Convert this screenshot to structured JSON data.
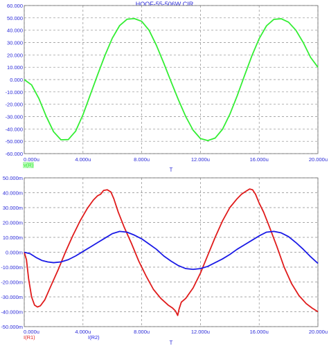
{
  "title": "HQQF-55-506W CIR",
  "colors": {
    "grid": "#8a8a8a",
    "axis": "#000000",
    "tick_label": "#2a2ad8",
    "v_trace": "#33ee33",
    "i_r1": "#e01b1b",
    "i_r2": "#1a1ae6"
  },
  "chart_data": [
    {
      "type": "line",
      "xlabel": "T",
      "ylabel": "",
      "x_ticks": [
        "0.000u",
        "4.000u",
        "8.000u",
        "12.000u",
        "16.000u",
        "20.000u"
      ],
      "y_ticks": [
        "60.000",
        "50.000",
        "40.000",
        "30.000",
        "20.000",
        "10.000",
        "0.000",
        "-10.000",
        "-20.000",
        "-30.000",
        "-40.000",
        "-50.000",
        "-60.000"
      ],
      "xlim": [
        0,
        20
      ],
      "ylim": [
        -60,
        60
      ],
      "x_unit": "u",
      "grid": true,
      "legend": "bottom-left",
      "series": [
        {
          "name": "v(R)",
          "color_key": "v_trace",
          "x": [
            0,
            0.5,
            1,
            1.5,
            2,
            2.5,
            3,
            3.5,
            4,
            4.5,
            5,
            5.5,
            6,
            6.5,
            7,
            7.5,
            8,
            8.5,
            9,
            9.5,
            10,
            10.5,
            11,
            11.5,
            12,
            12.5,
            13,
            13.5,
            14,
            14.5,
            15,
            15.5,
            16,
            16.5,
            17,
            17.5,
            18,
            18.5,
            19,
            19.5,
            20
          ],
          "values": [
            0.0,
            -4.3,
            -15.4,
            -29.9,
            -42.3,
            -48.8,
            -48.6,
            -41.8,
            -28.5,
            -12.2,
            4.0,
            19.7,
            33.6,
            43.8,
            48.9,
            49.4,
            47.2,
            40.0,
            27.8,
            13.4,
            -1.7,
            -16.4,
            -30.0,
            -41.0,
            -47.8,
            -49.4,
            -47.4,
            -40.3,
            -28.2,
            -13.2,
            3.2,
            19.2,
            33.2,
            43.6,
            48.8,
            49.3,
            46.5,
            40.0,
            30.0,
            18.0,
            10.0
          ]
        }
      ]
    },
    {
      "type": "line",
      "xlabel": "T",
      "ylabel": "",
      "x_ticks": [
        "0.000u",
        "4.000u",
        "8.000u",
        "12.000u",
        "16.000u",
        "20.000u"
      ],
      "y_ticks": [
        "50.000m",
        "40.000m",
        "30.000m",
        "20.000m",
        "10.000m",
        "0.000m",
        "-10.000m",
        "-20.000m",
        "-30.000m",
        "-40.000m",
        "-50.000m"
      ],
      "xlim": [
        0,
        20
      ],
      "ylim": [
        -50,
        50
      ],
      "x_unit": "u",
      "y_unit": "m",
      "grid": true,
      "legend": "bottom-left",
      "series": [
        {
          "name": "I(R1)",
          "color_key": "i_r1",
          "x": [
            0,
            0.15,
            0.3,
            0.5,
            0.7,
            0.9,
            1.1,
            1.4,
            1.8,
            2.3,
            2.8,
            3.3,
            3.8,
            4.3,
            4.7,
            5.0,
            5.2,
            5.4,
            5.65,
            5.9,
            6.1,
            6.4,
            6.8,
            7.3,
            7.8,
            8.3,
            8.8,
            9.3,
            9.8,
            10.1,
            10.3,
            10.45,
            10.55,
            10.7,
            11.0,
            11.5,
            12.0,
            12.5,
            13.0,
            13.5,
            14.0,
            14.5,
            14.8,
            15.1,
            15.35,
            15.55,
            15.75,
            16.0,
            16.3,
            16.7,
            17.2,
            17.7,
            18.2,
            18.7,
            19.2,
            19.6,
            20.0
          ],
          "values": [
            0.0,
            -5.0,
            -18.0,
            -30.0,
            -35.5,
            -36.8,
            -36.0,
            -32.0,
            -23.0,
            -12.0,
            0.0,
            11.0,
            21.0,
            29.5,
            35.0,
            38.0,
            39.0,
            41.5,
            42.0,
            40.5,
            36.0,
            27.0,
            17.0,
            6.0,
            -6.0,
            -16.0,
            -25.0,
            -31.0,
            -35.5,
            -37.5,
            -39.5,
            -42.5,
            -38.0,
            -33.5,
            -31.0,
            -24.0,
            -14.0,
            -2.0,
            10.0,
            21.0,
            30.0,
            36.0,
            39.0,
            41.0,
            42.5,
            42.0,
            39.0,
            33.0,
            27.0,
            17.0,
            4.0,
            -10.0,
            -21.0,
            -29.0,
            -34.5,
            -37.5,
            -40.0
          ]
        },
        {
          "name": "I(R2)",
          "color_key": "i_r2",
          "x": [
            0,
            0.4,
            0.8,
            1.2,
            1.6,
            2.0,
            2.5,
            3.0,
            3.5,
            4.0,
            4.5,
            5.0,
            5.5,
            6.0,
            6.5,
            7.0,
            7.5,
            8.0,
            8.5,
            9.0,
            9.5,
            10.0,
            10.5,
            11.0,
            11.5,
            12.0,
            12.5,
            13.0,
            13.5,
            14.0,
            14.5,
            15.0,
            15.5,
            16.0,
            16.5,
            17.0,
            17.5,
            18.0,
            18.5,
            19.0,
            19.5,
            20.0
          ],
          "values": [
            0.0,
            -1.0,
            -3.5,
            -5.5,
            -6.5,
            -7.0,
            -6.5,
            -5.0,
            -2.5,
            0.5,
            3.5,
            6.5,
            9.5,
            12.5,
            14.0,
            13.5,
            11.5,
            9.0,
            5.5,
            2.0,
            -2.5,
            -6.0,
            -9.0,
            -11.0,
            -11.5,
            -11.0,
            -9.5,
            -7.0,
            -4.5,
            -1.5,
            2.0,
            5.0,
            8.0,
            11.0,
            13.5,
            14.0,
            13.0,
            10.5,
            6.5,
            2.0,
            -3.0,
            -7.5
          ]
        }
      ]
    }
  ]
}
